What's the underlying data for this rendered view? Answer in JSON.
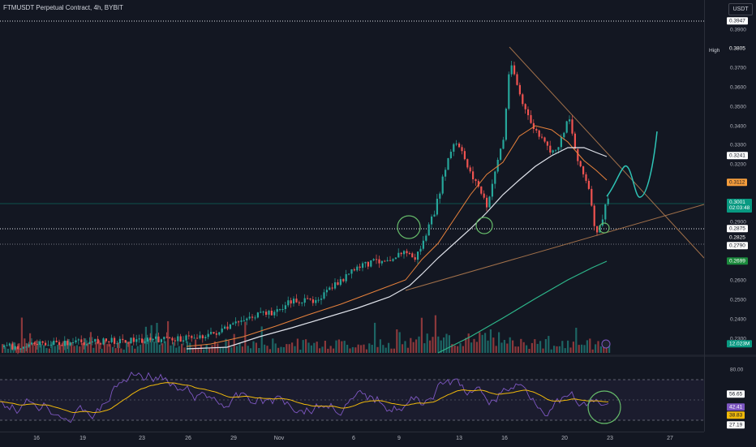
{
  "header": {
    "title": "FTMUSDT Perpetual Contract, 4h, BYBIT",
    "currency_button": "USDT"
  },
  "price_axis": {
    "ticks": [
      "0.3900",
      "0.3700",
      "0.3600",
      "0.3500",
      "0.3400",
      "0.3300",
      "0.3200",
      "0.2900",
      "0.2600",
      "0.2500",
      "0.2400",
      "0.2300"
    ],
    "labels": {
      "top_line": "0.3947",
      "high_word": "High",
      "high": "0.3805",
      "ma_white": "0.3241",
      "ma_orange": "0.3112",
      "last_price": "0.3001",
      "countdown": "02:03:48",
      "level_1": "0.2875",
      "level_2": "0.2825",
      "level_3": "0.2790",
      "ma_green": "0.2699",
      "volume": "12.023M"
    }
  },
  "rsi_axis": {
    "ticks": [
      "80.00"
    ],
    "labels": {
      "level_upper": "56.65",
      "rsi": "42.41",
      "rsi_ma": "38.83",
      "level_lower": "27.19"
    }
  },
  "time_axis": {
    "dates": [
      "16",
      "19",
      "23",
      "26",
      "29",
      "Nov",
      "6",
      "9",
      "13",
      "16",
      "20",
      "23",
      "27"
    ]
  },
  "colors": {
    "background": "#131722",
    "up": "#26a69a",
    "down": "#ef5350",
    "ma_white": "#e0e3eb",
    "ma_orange": "#e8823c",
    "ma_green": "#2db68a",
    "trendline": "#a1704a",
    "projection": "#2ec4b6",
    "highlight_circle": "#66bb6a",
    "rsi_line": "#7e57c2",
    "rsi_ma": "#f0b90b",
    "last_price_bg": "#089981",
    "ma_orange_bg": "#f59d3c",
    "ma_green_bg": "#1b8a3c"
  }
}
